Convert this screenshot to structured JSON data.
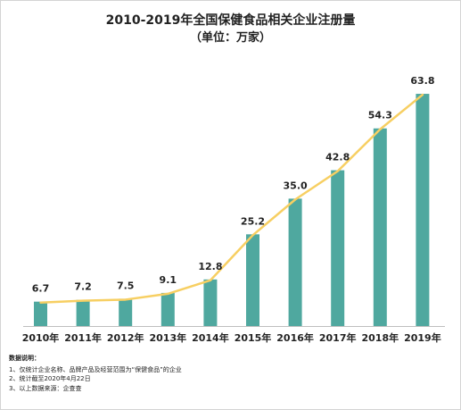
{
  "chart_data": {
    "type": "bar",
    "title": "2010-2019年全国保健食品相关企业注册量",
    "subtitle": "（单位：万家）",
    "categories": [
      "2010年",
      "2011年",
      "2012年",
      "2013年",
      "2014年",
      "2015年",
      "2016年",
      "2017年",
      "2018年",
      "2019年"
    ],
    "values": [
      6.7,
      7.2,
      7.5,
      9.1,
      12.8,
      25.2,
      35.0,
      42.8,
      54.3,
      63.8
    ],
    "value_labels": [
      "6.7",
      "7.2",
      "7.5",
      "9.1",
      "12.8",
      "25.2",
      "35.0",
      "42.8",
      "54.3",
      "63.8"
    ],
    "overlay_line": true,
    "ylim": [
      0,
      67
    ],
    "grid": false,
    "legend": "none",
    "colors": {
      "bar": "#4fa89f",
      "line": "#f7cf62",
      "text": "#222222"
    }
  },
  "notes": {
    "heading": "数据说明：",
    "items": [
      "1、仅统计企业名称、品牌产品及经营范围为“保健食品”的企业",
      "2、统计截至2020年4月22日",
      "3、以上数据来源：企查查"
    ]
  }
}
